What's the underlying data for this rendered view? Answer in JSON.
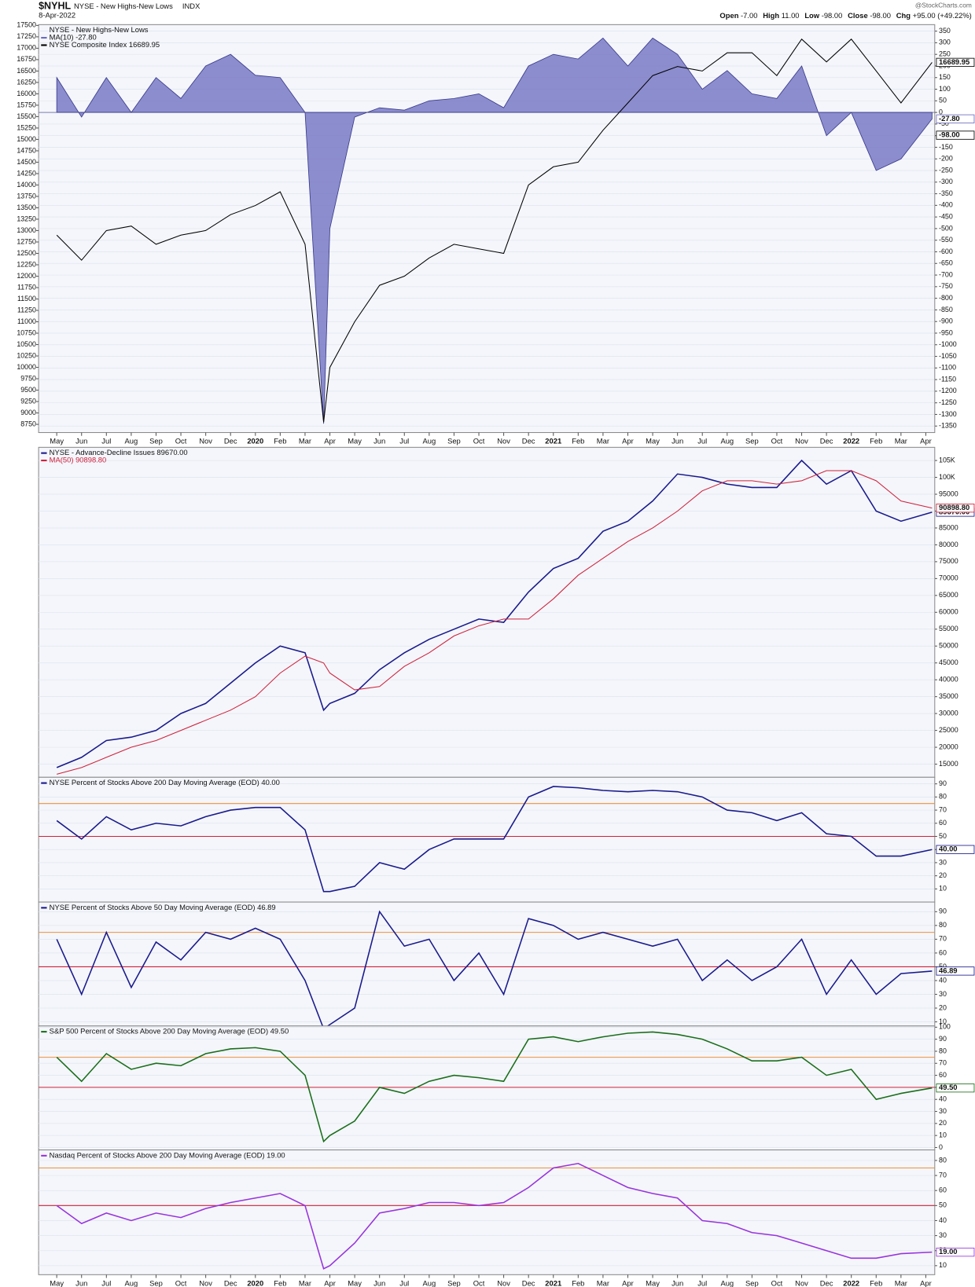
{
  "chart_data": [
    {
      "type": "area",
      "symbol": "$NYHL",
      "title": "NYSE - New Highs-New Lows",
      "subtitle": "INDX",
      "date": "8-Apr-2022",
      "source": "@StockCharts.com",
      "quote": [
        {
          "name": "Open",
          "value": -7,
          "text": "-7.00"
        },
        {
          "name": "High",
          "value": 11,
          "text": "11.00"
        },
        {
          "name": "Low",
          "value": -98,
          "text": "-98.00"
        },
        {
          "name": "Close",
          "value": -98,
          "text": "-98.00"
        },
        {
          "name": "Chg",
          "value": 95,
          "text": "+95.00 (+49.22%)"
        }
      ],
      "xlim": [
        -0.73,
        35.36
      ],
      "x": [
        0,
        1,
        2,
        3,
        4,
        5,
        6,
        7,
        8,
        9,
        10,
        10.75,
        11,
        12,
        13,
        14,
        15,
        16,
        17,
        18,
        19,
        20,
        21,
        22,
        23,
        24,
        25,
        26,
        27,
        28,
        29,
        30,
        31,
        32,
        33,
        34,
        35.25
      ],
      "xticks": [
        {
          "value": 0,
          "label": "May"
        },
        {
          "value": 1,
          "label": "Jun"
        },
        {
          "value": 2,
          "label": "Jul"
        },
        {
          "value": 3,
          "label": "Aug"
        },
        {
          "value": 4,
          "label": "Sep"
        },
        {
          "value": 5,
          "label": "Oct"
        },
        {
          "value": 6,
          "label": "Nov"
        },
        {
          "value": 7,
          "label": "Dec"
        },
        {
          "value": 8,
          "label": "2020"
        },
        {
          "value": 9,
          "label": "Feb"
        },
        {
          "value": 10,
          "label": "Mar"
        },
        {
          "value": 11,
          "label": "Apr"
        },
        {
          "value": 12,
          "label": "May"
        },
        {
          "value": 13,
          "label": "Jun"
        },
        {
          "value": 14,
          "label": "Jul"
        },
        {
          "value": 15,
          "label": "Aug"
        },
        {
          "value": 16,
          "label": "Sep"
        },
        {
          "value": 17,
          "label": "Oct"
        },
        {
          "value": 18,
          "label": "Nov"
        },
        {
          "value": 19,
          "label": "Dec"
        },
        {
          "value": 20,
          "label": "2021"
        },
        {
          "value": 21,
          "label": "Feb"
        },
        {
          "value": 22,
          "label": "Mar"
        },
        {
          "value": 23,
          "label": "Apr"
        },
        {
          "value": 24,
          "label": "May"
        },
        {
          "value": 25,
          "label": "Jun"
        },
        {
          "value": 26,
          "label": "Jul"
        },
        {
          "value": 27,
          "label": "Aug"
        },
        {
          "value": 28,
          "label": "Sep"
        },
        {
          "value": 29,
          "label": "Oct"
        },
        {
          "value": 30,
          "label": "Nov"
        },
        {
          "value": 31,
          "label": "Dec"
        },
        {
          "value": 32,
          "label": "2022"
        },
        {
          "value": 33,
          "label": "Feb"
        },
        {
          "value": 34,
          "label": "Mar"
        },
        {
          "value": 35,
          "label": "Apr"
        }
      ],
      "ylim": [
        -1378,
        378
      ],
      "yticks": [
        -1350,
        -1300,
        -1250,
        -1200,
        -1150,
        -1100,
        -1050,
        -1000,
        -950,
        -900,
        -850,
        -800,
        -750,
        -700,
        -650,
        -600,
        -550,
        -500,
        -450,
        -400,
        -350,
        -300,
        -250,
        -200,
        -150,
        -100,
        -50,
        0,
        50,
        100,
        150,
        200,
        250,
        300,
        350
      ],
      "y2lim": [
        8570,
        17518
      ],
      "y2ticks": [
        8750,
        9000,
        9250,
        9500,
        9750,
        10000,
        10250,
        10500,
        10750,
        11000,
        11250,
        11500,
        11750,
        12000,
        12250,
        12500,
        12750,
        13000,
        13250,
        13500,
        13750,
        14000,
        14250,
        14500,
        14750,
        15000,
        15250,
        15500,
        15750,
        16000,
        16250,
        16500,
        16750,
        17000,
        17250,
        17500
      ],
      "grid": true,
      "series": [
        {
          "name": "MA(10) -27.80",
          "type": "area",
          "color": "#6a6abf",
          "last_label": "-27.80",
          "values": [
            150,
            -20,
            150,
            0,
            150,
            60,
            200,
            250,
            160,
            150,
            0,
            -1340,
            -500,
            -20,
            20,
            10,
            50,
            60,
            80,
            20,
            200,
            250,
            230,
            320,
            200,
            320,
            250,
            100,
            180,
            80,
            60,
            200,
            -100,
            0,
            -250,
            -200,
            -27.8
          ]
        },
        {
          "name": "NYSE Composite Index 16689.95",
          "type": "line",
          "axis": "y2",
          "color": "#000000",
          "last_label": "16689.95",
          "values": [
            12900,
            12350,
            13000,
            13100,
            12700,
            12900,
            13000,
            13350,
            13550,
            13850,
            12700,
            8800,
            10000,
            11000,
            11800,
            12000,
            12400,
            12700,
            12600,
            12500,
            14000,
            14400,
            14500,
            15200,
            15800,
            16400,
            16600,
            16500,
            16900,
            16900,
            16400,
            17200,
            16700,
            17200,
            16500,
            15800,
            16689.95
          ]
        }
      ]
    },
    {
      "type": "line",
      "ylim": [
        11100,
        108900
      ],
      "yticks": [
        15000,
        20000,
        25000,
        30000,
        35000,
        40000,
        45000,
        50000,
        55000,
        60000,
        65000,
        70000,
        75000,
        80000,
        85000,
        90000,
        95000,
        {
          "value": 100000,
          "label": "100K"
        },
        {
          "value": 105000,
          "label": "105K"
        }
      ],
      "grid": true,
      "series": [
        {
          "name": "NYSE - Advance-Decline Issues 89670.00",
          "color": "#1a1a8c",
          "last_label": "89670.00",
          "values": [
            14000,
            17000,
            22000,
            23000,
            25000,
            30000,
            33000,
            39000,
            45000,
            50000,
            48000,
            31000,
            33000,
            36000,
            43000,
            48000,
            52000,
            55000,
            58000,
            57000,
            66000,
            73000,
            76000,
            84000,
            87000,
            93000,
            101000,
            100000,
            98000,
            97000,
            97000,
            105000,
            98000,
            102000,
            90000,
            87000,
            89670
          ]
        },
        {
          "name": "MA(50) 90898.80",
          "color": "#d0203a",
          "last_label": "90898.80",
          "values": [
            12000,
            14000,
            17000,
            20000,
            22000,
            25000,
            28000,
            31000,
            35000,
            42000,
            47000,
            45000,
            42000,
            37000,
            38000,
            44000,
            48000,
            53000,
            56000,
            58000,
            58000,
            64000,
            71000,
            76000,
            81000,
            85000,
            90000,
            96000,
            99000,
            99000,
            98000,
            99000,
            102000,
            102000,
            99000,
            93000,
            90898.8
          ]
        }
      ]
    },
    {
      "type": "line",
      "ylim": [
        0,
        95
      ],
      "yticks": [
        10,
        20,
        30,
        40,
        50,
        60,
        70,
        80,
        90
      ],
      "grid": true,
      "ref_lines": [
        {
          "value": 75,
          "color": "#f0903c"
        },
        {
          "value": 50,
          "color": "#d0203a"
        }
      ],
      "series": [
        {
          "name": "NYSE Percent of Stocks Above 200 Day Moving Average (EOD) 40.00",
          "color": "#1a1a8c",
          "last_label": "40.00",
          "values": [
            62,
            48,
            65,
            55,
            60,
            58,
            65,
            70,
            72,
            72,
            55,
            8,
            8,
            12,
            30,
            25,
            40,
            48,
            48,
            48,
            80,
            88,
            87,
            85,
            84,
            85,
            84,
            80,
            70,
            68,
            62,
            68,
            52,
            50,
            35,
            35,
            40
          ]
        }
      ]
    },
    {
      "type": "line",
      "ylim": [
        7,
        97
      ],
      "yticks": [
        10,
        20,
        30,
        40,
        50,
        60,
        70,
        80,
        90
      ],
      "grid": true,
      "ref_lines": [
        {
          "value": 75,
          "color": "#f0903c"
        },
        {
          "value": 50,
          "color": "#d0203a"
        }
      ],
      "series": [
        {
          "name": "NYSE Percent of Stocks Above 50 Day Moving Average (EOD) 46.89",
          "color": "#1a1a8c",
          "last_label": "46.89",
          "values": [
            70,
            30,
            75,
            35,
            68,
            55,
            75,
            70,
            78,
            70,
            40,
            5,
            8,
            20,
            90,
            65,
            70,
            40,
            60,
            30,
            85,
            80,
            70,
            75,
            70,
            65,
            70,
            40,
            55,
            40,
            50,
            70,
            30,
            55,
            30,
            45,
            46.89
          ]
        }
      ]
    },
    {
      "type": "line",
      "ylim": [
        -2,
        101
      ],
      "yticks": [
        0,
        10,
        20,
        30,
        40,
        50,
        60,
        70,
        80,
        90,
        100
      ],
      "grid": true,
      "ref_lines": [
        {
          "value": 75,
          "color": "#f0903c"
        },
        {
          "value": 50,
          "color": "#d0203a"
        }
      ],
      "series": [
        {
          "name": "S&P 500 Percent of Stocks Above 200 Day Moving Average (EOD) 49.50",
          "color": "#1a6e1a",
          "last_label": "49.50",
          "values": [
            75,
            55,
            78,
            65,
            70,
            68,
            78,
            82,
            83,
            80,
            60,
            5,
            10,
            22,
            50,
            45,
            55,
            60,
            58,
            55,
            90,
            92,
            88,
            92,
            95,
            96,
            94,
            90,
            82,
            72,
            72,
            75,
            60,
            65,
            40,
            45,
            49.5
          ]
        }
      ]
    },
    {
      "type": "line",
      "ylim": [
        4,
        87
      ],
      "yticks": [
        10,
        20,
        30,
        40,
        50,
        60,
        70,
        80
      ],
      "grid": true,
      "ref_lines": [
        {
          "value": 75,
          "color": "#f0903c"
        },
        {
          "value": 50,
          "color": "#d0203a"
        }
      ],
      "series": [
        {
          "name": "Nasdaq Percent of Stocks Above 200 Day Moving Average (EOD) 19.00",
          "color": "#9933dd",
          "last_label": "19.00",
          "values": [
            50,
            38,
            45,
            40,
            45,
            42,
            48,
            52,
            55,
            58,
            50,
            8,
            10,
            25,
            45,
            48,
            52,
            52,
            50,
            52,
            62,
            75,
            78,
            70,
            62,
            58,
            55,
            40,
            38,
            32,
            30,
            25,
            20,
            15,
            15,
            18,
            19
          ]
        }
      ]
    }
  ]
}
